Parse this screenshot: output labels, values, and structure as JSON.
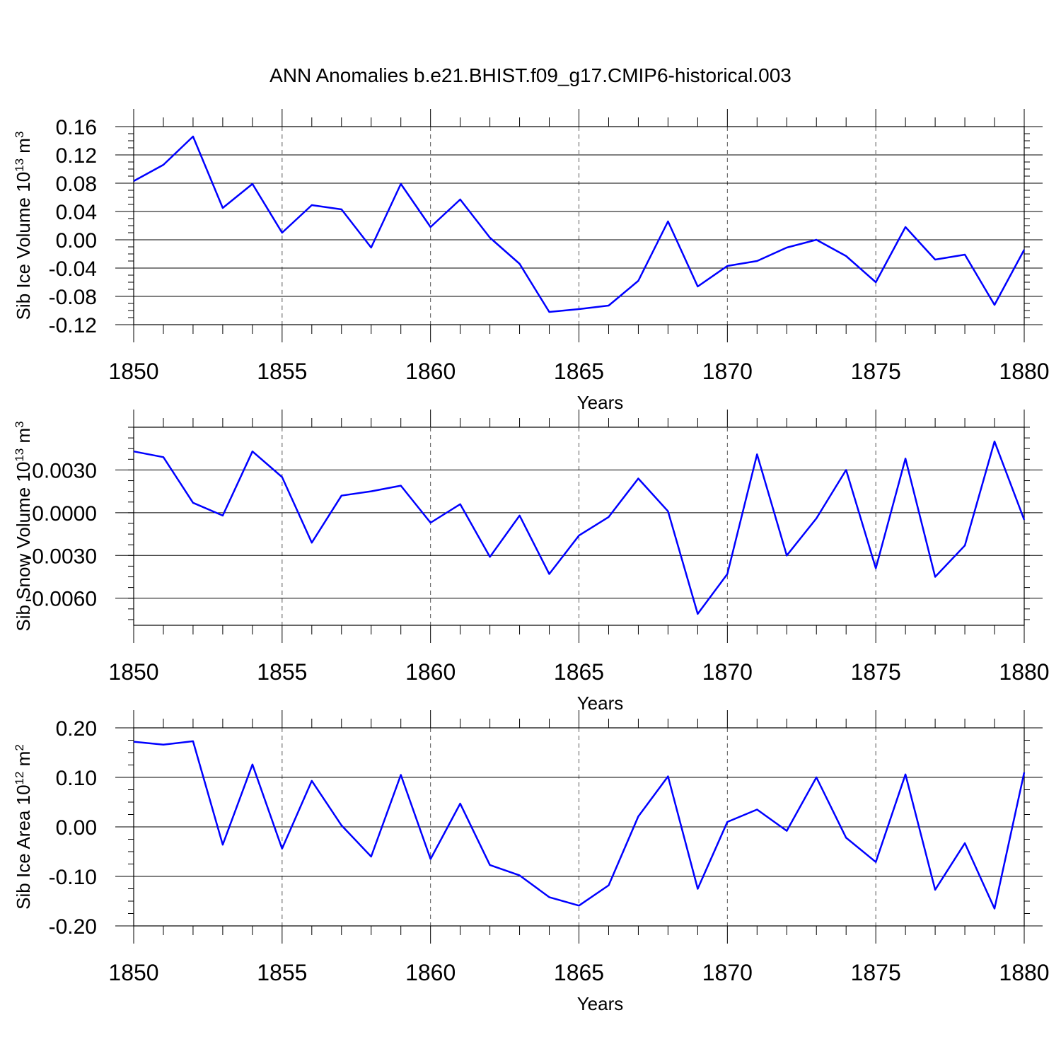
{
  "figure_title": "ANN Anomalies b.e21.BHIST.f09_g17.CMIP6-historical.003",
  "line_color": "#0000ff",
  "chart_data": [
    {
      "type": "line",
      "title": "",
      "xlabel": "Years",
      "ylabel": "Sib Ice Volume 10",
      "ylabel_exp": "13",
      "ylabel_unit": " m",
      "ylabel_unit_exp": "3",
      "xlim": [
        1850,
        1880
      ],
      "ylim": [
        -0.12,
        0.16
      ],
      "yticks": [
        -0.12,
        -0.08,
        -0.04,
        0.0,
        0.04,
        0.08,
        0.12,
        0.16
      ],
      "ytick_labels": [
        "-0.12",
        "-0.08",
        "-0.04",
        "0.00",
        "0.04",
        "0.08",
        "0.12",
        "0.16"
      ],
      "xticks": [
        1850,
        1855,
        1860,
        1865,
        1870,
        1875,
        1880
      ],
      "xtick_labels": [
        "1850",
        "1855",
        "1860",
        "1865",
        "1870",
        "1875",
        "1880"
      ],
      "series": [
        {
          "name": "Sib Ice Volume",
          "x": [
            1850,
            1851,
            1852,
            1853,
            1854,
            1855,
            1856,
            1857,
            1858,
            1859,
            1860,
            1861,
            1862,
            1863,
            1864,
            1865,
            1866,
            1867,
            1868,
            1869,
            1870,
            1871,
            1872,
            1873,
            1874,
            1875,
            1876,
            1877,
            1878,
            1879,
            1880
          ],
          "values": [
            0.083,
            0.106,
            0.146,
            0.045,
            0.079,
            0.01,
            0.049,
            0.043,
            -0.011,
            0.079,
            0.018,
            0.057,
            0.003,
            -0.034,
            -0.102,
            -0.098,
            -0.093,
            -0.058,
            0.026,
            -0.066,
            -0.037,
            -0.03,
            -0.011,
            0.0,
            -0.023,
            -0.06,
            0.018,
            -0.028,
            -0.021,
            -0.092,
            -0.014
          ]
        }
      ]
    },
    {
      "type": "line",
      "title": "",
      "xlabel": "Years",
      "ylabel": "Sib Snow Volume 10",
      "ylabel_exp": "13",
      "ylabel_unit": " m",
      "ylabel_unit_exp": "3",
      "xlim": [
        1850,
        1880
      ],
      "ylim": [
        -0.0079,
        0.006
      ],
      "yticks": [
        -0.006,
        -0.003,
        0.0,
        0.003
      ],
      "ytick_labels": [
        "-0.0060",
        "-0.0030",
        "0.0000",
        "0.0030"
      ],
      "xticks": [
        1850,
        1855,
        1860,
        1865,
        1870,
        1875,
        1880
      ],
      "xtick_labels": [
        "1850",
        "1855",
        "1860",
        "1865",
        "1870",
        "1875",
        "1880"
      ],
      "series": [
        {
          "name": "Sib Snow Volume",
          "x": [
            1850,
            1851,
            1852,
            1853,
            1854,
            1855,
            1856,
            1857,
            1858,
            1859,
            1860,
            1861,
            1862,
            1863,
            1864,
            1865,
            1866,
            1867,
            1868,
            1869,
            1870,
            1871,
            1872,
            1873,
            1874,
            1875,
            1876,
            1877,
            1878,
            1879,
            1880
          ],
          "values": [
            0.0043,
            0.0039,
            0.0007,
            -0.0002,
            0.0043,
            0.0025,
            -0.0021,
            0.0012,
            0.0015,
            0.0019,
            -0.0007,
            0.0006,
            -0.0031,
            -0.0002,
            -0.0043,
            -0.0016,
            -0.0003,
            0.0024,
            0.0001,
            -0.0071,
            -0.0043,
            0.0041,
            -0.003,
            -0.0004,
            0.003,
            -0.0039,
            0.0038,
            -0.0045,
            -0.0023,
            0.005,
            -0.0005
          ]
        }
      ]
    },
    {
      "type": "line",
      "title": "",
      "xlabel": "Years",
      "ylabel": "Sib Ice Area 10",
      "ylabel_exp": "12",
      "ylabel_unit": " m",
      "ylabel_unit_exp": "2",
      "xlim": [
        1850,
        1880
      ],
      "ylim": [
        -0.2,
        0.2
      ],
      "yticks": [
        -0.2,
        -0.1,
        0.0,
        0.1,
        0.2
      ],
      "ytick_labels": [
        "-0.20",
        "-0.10",
        "0.00",
        "0.10",
        "0.20"
      ],
      "xticks": [
        1850,
        1855,
        1860,
        1865,
        1870,
        1875,
        1880
      ],
      "xtick_labels": [
        "1850",
        "1855",
        "1860",
        "1865",
        "1870",
        "1875",
        "1880"
      ],
      "series": [
        {
          "name": "Sib Ice Area",
          "x": [
            1850,
            1851,
            1852,
            1853,
            1854,
            1855,
            1856,
            1857,
            1858,
            1859,
            1860,
            1861,
            1862,
            1863,
            1864,
            1865,
            1866,
            1867,
            1868,
            1869,
            1870,
            1871,
            1872,
            1873,
            1874,
            1875,
            1876,
            1877,
            1878,
            1879,
            1880
          ],
          "values": [
            0.172,
            0.166,
            0.173,
            -0.036,
            0.126,
            -0.044,
            0.093,
            0.003,
            -0.06,
            0.105,
            -0.065,
            0.047,
            -0.077,
            -0.098,
            -0.142,
            -0.159,
            -0.118,
            0.021,
            0.102,
            -0.125,
            0.01,
            0.035,
            -0.008,
            0.1,
            -0.022,
            -0.071,
            0.106,
            -0.127,
            -0.033,
            -0.165,
            0.11
          ]
        }
      ]
    }
  ]
}
